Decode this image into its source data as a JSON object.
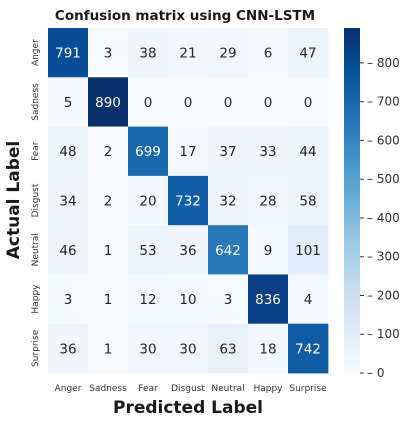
{
  "chart_data": {
    "type": "heatmap",
    "title": "Confusion matrix using CNN-LSTM",
    "xlabel": "Predicted Label",
    "ylabel": "Actual Label",
    "x_categories": [
      "Anger",
      "Sadness",
      "Fear",
      "Disgust",
      "Neutral",
      "Happy",
      "Surprise"
    ],
    "y_categories": [
      "Anger",
      "Sadness",
      "Fear",
      "Disgust",
      "Neutral",
      "Happy",
      "Surprise"
    ],
    "values": [
      [
        791,
        3,
        38,
        21,
        29,
        6,
        47
      ],
      [
        5,
        890,
        0,
        0,
        0,
        0,
        0
      ],
      [
        48,
        2,
        699,
        17,
        37,
        33,
        44
      ],
      [
        34,
        2,
        20,
        732,
        32,
        28,
        58
      ],
      [
        46,
        1,
        53,
        36,
        642,
        9,
        101
      ],
      [
        3,
        1,
        12,
        10,
        3,
        836,
        4
      ],
      [
        36,
        1,
        30,
        30,
        63,
        18,
        742
      ]
    ],
    "colormap": "Blues",
    "vmin": 0,
    "vmax": 890,
    "colorbar_ticks": [
      0,
      100,
      200,
      300,
      400,
      500,
      600,
      700,
      800
    ],
    "colorbar_tick_labels": [
      "0",
      "100",
      "200",
      "300",
      "400",
      "500",
      "600",
      "700",
      "800"
    ]
  }
}
